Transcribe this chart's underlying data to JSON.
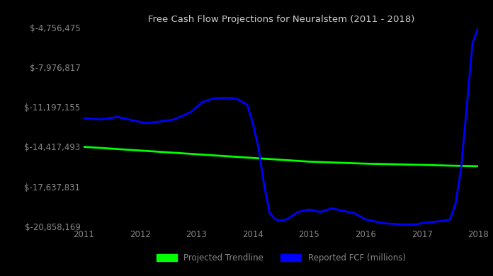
{
  "title": "Free Cash Flow Projections for Neuralstem (2011 - 2018)",
  "background_color": "#000000",
  "text_color": "#888888",
  "title_color": "#cccccc",
  "x_min": 2011,
  "x_max": 2018,
  "y_min": -20858169,
  "y_max": -4756475,
  "yticks": [
    -4756475,
    -7976817,
    -11197155,
    -14417493,
    -17637831,
    -20858169
  ],
  "ytick_labels": [
    "$-4,756,475",
    "$-7,976,817",
    "$-11,197,155",
    "$-14,417,493",
    "$-17,637,831",
    "$-20,858,169"
  ],
  "xticks": [
    2011,
    2012,
    2013,
    2014,
    2015,
    2016,
    2017,
    2018
  ],
  "trendline_color": "#00ff00",
  "fcf_color": "#0000ff",
  "trendline_x": [
    2011,
    2011.5,
    2012,
    2012.5,
    2013,
    2013.5,
    2014,
    2014.5,
    2015,
    2015.5,
    2016,
    2016.5,
    2017,
    2017.5,
    2018
  ],
  "trendline_y": [
    -14417493,
    -14567000,
    -14717000,
    -14867000,
    -15017000,
    -15167000,
    -15317000,
    -15467000,
    -15617000,
    -15700000,
    -15780000,
    -15830000,
    -15880000,
    -15940000,
    -15990000
  ],
  "fcf_x": [
    2011,
    2011.3,
    2011.6,
    2011.9,
    2012.1,
    2012.3,
    2012.6,
    2012.9,
    2013.1,
    2013.3,
    2013.5,
    2013.7,
    2013.9,
    2014.0,
    2014.1,
    2014.2,
    2014.3,
    2014.4,
    2014.5,
    2014.6,
    2014.8,
    2015.0,
    2015.2,
    2015.4,
    2015.6,
    2015.8,
    2016.0,
    2016.3,
    2016.6,
    2016.9,
    2017.0,
    2017.2,
    2017.4,
    2017.5,
    2017.6,
    2017.7,
    2017.8,
    2017.9,
    2018.0
  ],
  "fcf_y": [
    -12100000,
    -12200000,
    -12000000,
    -12300000,
    -12500000,
    -12400000,
    -12200000,
    -11600000,
    -10800000,
    -10500000,
    -10450000,
    -10500000,
    -11000000,
    -12500000,
    -14500000,
    -17500000,
    -19800000,
    -20300000,
    -20400000,
    -20300000,
    -19700000,
    -19500000,
    -19700000,
    -19400000,
    -19600000,
    -19800000,
    -20300000,
    -20600000,
    -20700000,
    -20700000,
    -20600000,
    -20500000,
    -20400000,
    -20300000,
    -19000000,
    -16000000,
    -11000000,
    -6000000,
    -4800000
  ],
  "legend_trendline": "Projected Trendline",
  "legend_fcf": "Reported FCF (millions)",
  "line_width": 2.0
}
